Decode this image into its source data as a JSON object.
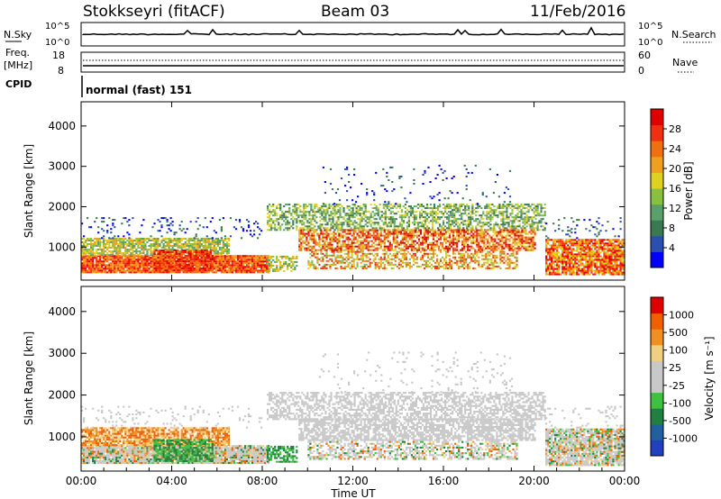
{
  "header": {
    "station": "Stokkseyri (fitACF)",
    "beam": "Beam 03",
    "date": "11/Feb/2016"
  },
  "top_panels": {
    "nsky_label": "N.Sky",
    "nsky_ticks": [
      "10^5",
      "10^0"
    ],
    "nsearch_label": "N.Search",
    "nsearch_ticks": [
      "10^5",
      "10^0"
    ],
    "freq_label_1": "Freq.",
    "freq_label_2": "[MHz]",
    "freq_ticks": [
      "18",
      "8"
    ],
    "nave_label": "Nave",
    "nave_ticks": [
      "60",
      "0"
    ],
    "cpid_label": "CPID",
    "cpid_value": "normal (fast) 151"
  },
  "colors": {
    "power": [
      "#0000ff",
      "#2a4fb0",
      "#3a7a50",
      "#5aa06a",
      "#88c040",
      "#e0d020",
      "#f0a020",
      "#f07010",
      "#f03010",
      "#e00000"
    ],
    "velocity": [
      "#2040c0",
      "#2060a0",
      "#208040",
      "#40c040",
      "#c8c8c8",
      "#c8c8c8",
      "#f0d080",
      "#f09020",
      "#f06000",
      "#e00000"
    ]
  },
  "chart_data": [
    {
      "type": "heatmap",
      "ylabel": "Slant Range [km]",
      "ylim": [
        180,
        4600
      ],
      "yticks": [
        1000,
        2000,
        3000,
        4000
      ],
      "xlim": [
        0,
        24
      ],
      "colorbar_label": "Power [dB]",
      "colorbar_ticks": [
        "4",
        "8",
        "12",
        "16",
        "20",
        "24",
        "28"
      ]
    },
    {
      "type": "heatmap",
      "ylabel": "Slant Range [km]",
      "ylim": [
        180,
        4600
      ],
      "yticks": [
        1000,
        2000,
        3000,
        4000
      ],
      "xlim": [
        0,
        24
      ],
      "xticks": [
        "00:00",
        "04:00",
        "08:00",
        "12:00",
        "16:00",
        "20:00",
        "00:00"
      ],
      "xlabel": "Time UT",
      "colorbar_label": "Velocity [m s⁻¹]",
      "colorbar_ticks": [
        "-1000",
        "-500",
        "-100",
        "-25",
        "25",
        "100",
        "500",
        "1000"
      ]
    }
  ]
}
